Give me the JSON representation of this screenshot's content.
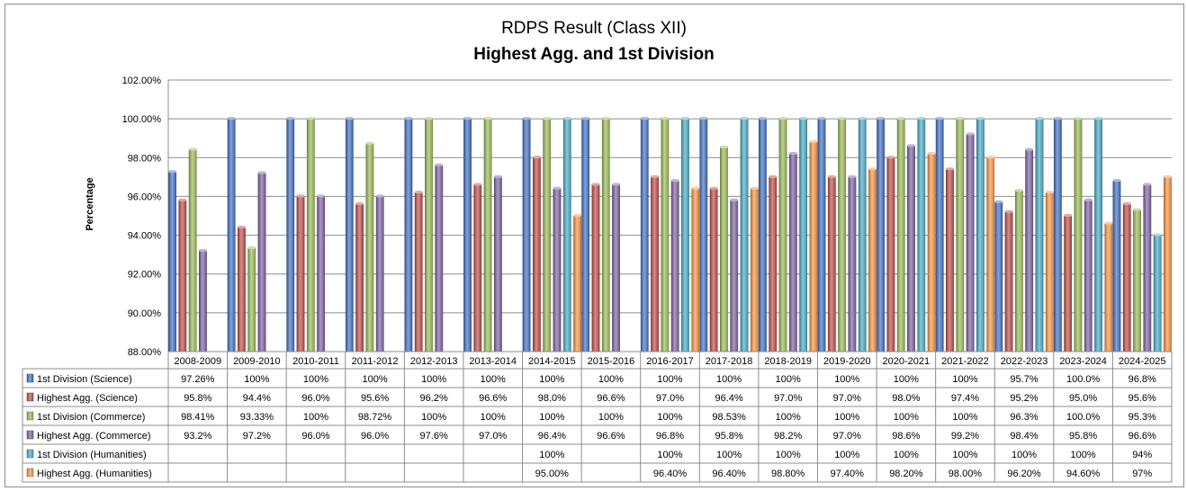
{
  "chart_data": {
    "type": "bar",
    "title": "RDPS Result (Class XII)",
    "subtitle": "Highest Agg. and 1st Division",
    "ylabel": "Percentage",
    "xlabel": "",
    "ylim": [
      88,
      102
    ],
    "yticks": [
      88,
      90,
      92,
      94,
      96,
      98,
      100,
      102
    ],
    "ytick_labels": [
      "88.00%",
      "90.00%",
      "92.00%",
      "94.00%",
      "96.00%",
      "98.00%",
      "100.00%",
      "102.00%"
    ],
    "grid": true,
    "legend": "data-table",
    "categories": [
      "2008-2009",
      "2009-2010",
      "2010-2011",
      "2011-2012",
      "2012-2013",
      "2013-2014",
      "2014-2015",
      "2015-2016",
      "2016-2017",
      "2017-2018",
      "2018-2019",
      "2019-2020",
      "2020-2021",
      "2021-2022",
      "2022-2023",
      "2023-2024",
      "2024-2025"
    ],
    "series": [
      {
        "name": "1st Division (Science)",
        "color": "#4472C4",
        "values": [
          97.26,
          100,
          100,
          100,
          100,
          100,
          100,
          100,
          100,
          100,
          100,
          100,
          100,
          100,
          95.7,
          100.0,
          96.8
        ],
        "labels": [
          "97.26%",
          "100%",
          "100%",
          "100%",
          "100%",
          "100%",
          "100%",
          "100%",
          "100%",
          "100%",
          "100%",
          "100%",
          "100%",
          "100%",
          "95.7%",
          "100.0%",
          "96.8%"
        ]
      },
      {
        "name": "Highest Agg. (Science)",
        "color": "#C0504D",
        "values": [
          95.8,
          94.4,
          96.0,
          95.6,
          96.2,
          96.6,
          98.0,
          96.6,
          97.0,
          96.4,
          97.0,
          97.0,
          98.0,
          97.4,
          95.2,
          95.0,
          95.6
        ],
        "labels": [
          "95.8%",
          "94.4%",
          "96.0%",
          "95.6%",
          "96.2%",
          "96.6%",
          "98.0%",
          "96.6%",
          "97.0%",
          "96.4%",
          "97.0%",
          "97.0%",
          "98.0%",
          "97.4%",
          "95.2%",
          "95.0%",
          "95.6%"
        ]
      },
      {
        "name": "1st Division (Commerce)",
        "color": "#9BBB59",
        "values": [
          98.41,
          93.33,
          100,
          98.72,
          100,
          100,
          100,
          100,
          100,
          98.53,
          100,
          100,
          100,
          100,
          96.3,
          100.0,
          95.3
        ],
        "labels": [
          "98.41%",
          "93.33%",
          "100%",
          "98.72%",
          "100%",
          "100%",
          "100%",
          "100%",
          "100%",
          "98.53%",
          "100%",
          "100%",
          "100%",
          "100%",
          "96.3%",
          "100.0%",
          "95.3%"
        ]
      },
      {
        "name": "Highest Agg. (Commerce)",
        "color": "#8064A2",
        "values": [
          93.2,
          97.2,
          96.0,
          96.0,
          97.6,
          97.0,
          96.4,
          96.6,
          96.8,
          95.8,
          98.2,
          97.0,
          98.6,
          99.2,
          98.4,
          95.8,
          96.6
        ],
        "labels": [
          "93.2%",
          "97.2%",
          "96.0%",
          "96.0%",
          "97.6%",
          "97.0%",
          "96.4%",
          "96.6%",
          "96.8%",
          "95.8%",
          "98.2%",
          "97.0%",
          "98.6%",
          "99.2%",
          "98.4%",
          "95.8%",
          "96.6%"
        ]
      },
      {
        "name": "1st Division (Humanities)",
        "color": "#4BACC6",
        "values": [
          null,
          null,
          null,
          null,
          null,
          null,
          100,
          null,
          100,
          100,
          100,
          100,
          100,
          100,
          100,
          100,
          94
        ],
        "labels": [
          "",
          "",
          "",
          "",
          "",
          "",
          "100%",
          "",
          "100%",
          "100%",
          "100%",
          "100%",
          "100%",
          "100%",
          "100%",
          "100%",
          "94%"
        ]
      },
      {
        "name": "Highest Agg. (Humanities)",
        "color": "#F79646",
        "values": [
          null,
          null,
          null,
          null,
          null,
          null,
          95.0,
          null,
          96.4,
          96.4,
          98.8,
          97.4,
          98.2,
          98.0,
          96.2,
          94.6,
          97
        ],
        "labels": [
          "",
          "",
          "",
          "",
          "",
          "",
          "95.00%",
          "",
          "96.40%",
          "96.40%",
          "98.80%",
          "97.40%",
          "98.20%",
          "98.00%",
          "96.20%",
          "94.60%",
          "97%"
        ]
      }
    ]
  }
}
